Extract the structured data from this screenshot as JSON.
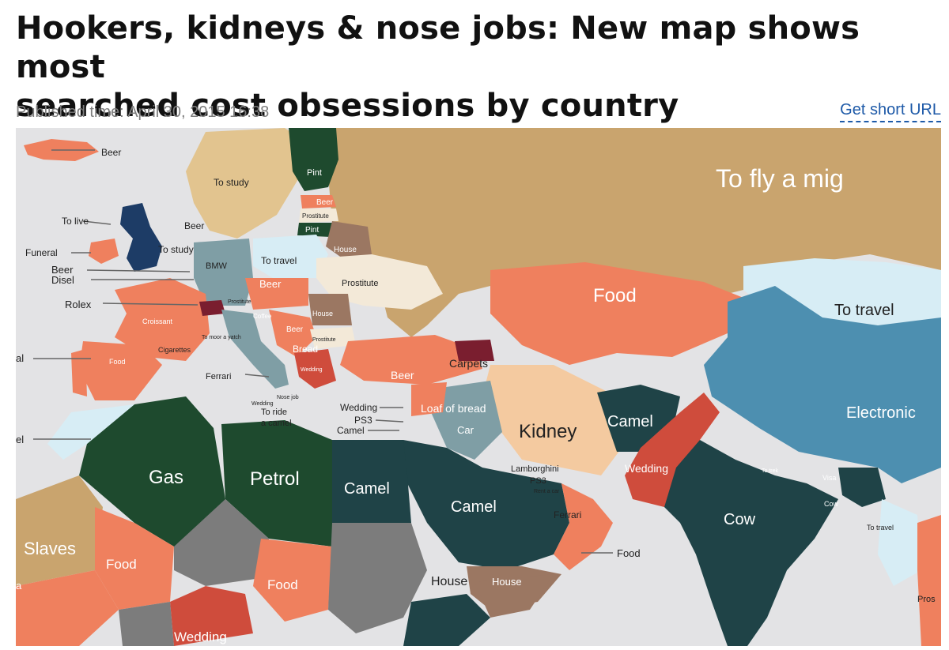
{
  "article": {
    "headline_line1": "Hookers, kidneys & nose jobs: New map shows most",
    "headline_line2": "searched cost obsessions by country",
    "published": "Published time: April 30, 2015 16:38",
    "short_url_label": "Get short URL"
  },
  "map": {
    "colors": {
      "tan": "#c9a46e",
      "salmon": "#ef805e",
      "teal_dark": "#1f4347",
      "green_dark": "#1e4a2e",
      "blue_steel": "#4d8fb0",
      "light_blue": "#d7edf5",
      "cream": "#f3e9d8",
      "peach": "#f4caa0",
      "brown": "#9b7762",
      "red": "#cf4c3c",
      "grey": "#7c7c7c",
      "light_tan": "#e2c48f",
      "grey_blue": "#7f9ea5",
      "navy": "#1d3c66",
      "maroon": "#7a1e2f",
      "ocean": "#e3e3e5"
    },
    "labels": {
      "beer_iceland": "Beer",
      "to_study_scandinavia": "To study",
      "pint_finland": "Pint",
      "to_fly_a_mig": "To fly a mig",
      "beer_baltic": "Beer",
      "prostitute_baltic": "Prostitute",
      "pint_baltic": "Pint",
      "to_live": "To live",
      "beer_denmark": "Beer",
      "house_belarus": "House",
      "funeral": "Funeral",
      "to_study_benelux": "To study",
      "bmw": "BMW",
      "to_travel_poland": "To travel",
      "beer_left": "Beer",
      "disel": "Disel",
      "beer_czech": "Beer",
      "prostitute_ukraine": "Prostitute",
      "food_kazakhstan": "Food",
      "to_travel_mongolia": "To travel",
      "rolex": "Rolex",
      "prostitute_small": "Prostitute",
      "house_romania": "House",
      "croissant": "Croissant",
      "coffee": "Coffee",
      "to_moor_a_yatch": "To moor a yatch",
      "beer_serbia": "Beer",
      "prostitute_bulgaria": "Prostitute",
      "cigarettes": "Cigarettes",
      "bread": "Bread",
      "food_spain": "Food",
      "al_left": "al",
      "wedding_greece": "Wedding",
      "carpets": "Carpets",
      "beer_turkey": "Beer",
      "ferrari_italy": "Ferrari",
      "nose_job": "Nose job",
      "wedding_malta": "Wedding",
      "to_ride_a_camel_l1": "To ride",
      "to_ride_a_camel_l2": "a camel",
      "wedding_cyprus": "Wedding",
      "loaf_of_bread": "Loaf of bread",
      "ps3_lebanon": "PS3",
      "camel_israel": "Camel",
      "car_iraq": "Car",
      "kidney": "Kidney",
      "camel_afghanistan": "Camel",
      "electronics": "Electronic",
      "el_left": "el",
      "gas": "Gas",
      "petrol": "Petrol",
      "camel_egypt": "Camel",
      "camel_saudi": "Camel",
      "lamborghini": "Lamborghini",
      "ps3_gulf": "PS3",
      "rent_a_car": "Rent a car",
      "ferrari_uae": "Ferrari",
      "wedding_pakistan": "Wedding",
      "to_trek": "To trek",
      "visa": "Visa",
      "cow_bangladesh": "Cow",
      "cow_india": "Cow",
      "to_travel_myanmar": "To travel",
      "slaves": "Slaves",
      "food_mali": "Food",
      "food_oman": "Food",
      "food_chad": "Food",
      "house_yemen": "House",
      "house_somalia": "House",
      "wedding_sudan": "Wedding",
      "pros_right": "Pros",
      "a_left": "a"
    }
  }
}
